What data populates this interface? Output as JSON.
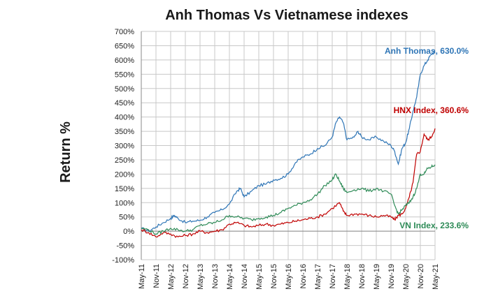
{
  "chart_data": {
    "type": "line",
    "title": "Anh Thomas Vs Vietnamese indexes",
    "ylabel": "Return %",
    "xlabel": "",
    "ylim": [
      -100,
      700
    ],
    "y_ticks": [
      -100,
      -50,
      0,
      50,
      100,
      150,
      200,
      250,
      300,
      350,
      400,
      450,
      500,
      550,
      600,
      650,
      700
    ],
    "y_tick_labels": [
      "-100%",
      "-50%",
      "0%",
      "50%",
      "100%",
      "150%",
      "200%",
      "250%",
      "300%",
      "350%",
      "400%",
      "450%",
      "500%",
      "550%",
      "600%",
      "650%",
      "700%"
    ],
    "x_tick_labels": [
      "May-11",
      "Nov-11",
      "May-12",
      "Nov-12",
      "May-13",
      "Nov-13",
      "May-14",
      "Nov-14",
      "May-15",
      "Nov-15",
      "May-16",
      "Nov-16",
      "May-17",
      "Nov-17",
      "May-18",
      "Nov-18",
      "May-19",
      "Nov-19",
      "May-20",
      "Nov-20",
      "May-21"
    ],
    "grid": true,
    "legend": "none",
    "series": [
      {
        "name": "Anh Thomas",
        "color": "#2e75b6",
        "end_label": "Anh Thomas, 630.0%",
        "values": [
          [
            0,
            10
          ],
          [
            2,
            0
          ],
          [
            4,
            15
          ],
          [
            6,
            30
          ],
          [
            8,
            45
          ],
          [
            9,
            55
          ],
          [
            10,
            45
          ],
          [
            12,
            30
          ],
          [
            14,
            35
          ],
          [
            16,
            38
          ],
          [
            18,
            50
          ],
          [
            20,
            65
          ],
          [
            22,
            75
          ],
          [
            24,
            95
          ],
          [
            26,
            140
          ],
          [
            27,
            150
          ],
          [
            28,
            120
          ],
          [
            30,
            140
          ],
          [
            32,
            160
          ],
          [
            34,
            165
          ],
          [
            36,
            180
          ],
          [
            38,
            185
          ],
          [
            40,
            200
          ],
          [
            42,
            240
          ],
          [
            44,
            260
          ],
          [
            46,
            270
          ],
          [
            48,
            290
          ],
          [
            50,
            300
          ],
          [
            52,
            330
          ],
          [
            53,
            380
          ],
          [
            54,
            400
          ],
          [
            55,
            380
          ],
          [
            56,
            320
          ],
          [
            58,
            330
          ],
          [
            59,
            350
          ],
          [
            60,
            330
          ],
          [
            62,
            320
          ],
          [
            64,
            330
          ],
          [
            66,
            315
          ],
          [
            68,
            300
          ],
          [
            69,
            280
          ],
          [
            70,
            235
          ],
          [
            71,
            290
          ],
          [
            72,
            310
          ],
          [
            73,
            360
          ],
          [
            74,
            420
          ],
          [
            75,
            470
          ],
          [
            76,
            550
          ],
          [
            77,
            580
          ],
          [
            78,
            600
          ],
          [
            79,
            620
          ],
          [
            80,
            630
          ]
        ]
      },
      {
        "name": "HNX Index",
        "color": "#c00000",
        "end_label": "HNX Index, 360.6%",
        "values": [
          [
            0,
            5
          ],
          [
            2,
            -5
          ],
          [
            4,
            -20
          ],
          [
            6,
            -5
          ],
          [
            8,
            -10
          ],
          [
            10,
            -20
          ],
          [
            12,
            -15
          ],
          [
            14,
            -10
          ],
          [
            16,
            0
          ],
          [
            18,
            -5
          ],
          [
            20,
            0
          ],
          [
            22,
            5
          ],
          [
            24,
            25
          ],
          [
            26,
            30
          ],
          [
            28,
            20
          ],
          [
            30,
            15
          ],
          [
            32,
            20
          ],
          [
            34,
            25
          ],
          [
            36,
            20
          ],
          [
            38,
            25
          ],
          [
            40,
            30
          ],
          [
            42,
            35
          ],
          [
            44,
            40
          ],
          [
            46,
            45
          ],
          [
            48,
            50
          ],
          [
            50,
            60
          ],
          [
            52,
            80
          ],
          [
            54,
            100
          ],
          [
            55,
            70
          ],
          [
            56,
            55
          ],
          [
            58,
            60
          ],
          [
            60,
            60
          ],
          [
            62,
            55
          ],
          [
            64,
            50
          ],
          [
            66,
            55
          ],
          [
            68,
            50
          ],
          [
            69,
            40
          ],
          [
            70,
            55
          ],
          [
            71,
            60
          ],
          [
            72,
            80
          ],
          [
            73,
            120
          ],
          [
            74,
            170
          ],
          [
            75,
            270
          ],
          [
            76,
            280
          ],
          [
            77,
            340
          ],
          [
            78,
            320
          ],
          [
            79,
            330
          ],
          [
            80,
            360
          ]
        ]
      },
      {
        "name": "VN Index",
        "color": "#2e8b57",
        "end_label": "VN Index, 233.6%",
        "values": [
          [
            0,
            10
          ],
          [
            2,
            5
          ],
          [
            4,
            -10
          ],
          [
            6,
            0
          ],
          [
            8,
            10
          ],
          [
            10,
            5
          ],
          [
            12,
            0
          ],
          [
            14,
            5
          ],
          [
            16,
            20
          ],
          [
            18,
            25
          ],
          [
            20,
            30
          ],
          [
            22,
            40
          ],
          [
            24,
            55
          ],
          [
            26,
            50
          ],
          [
            28,
            45
          ],
          [
            30,
            40
          ],
          [
            32,
            45
          ],
          [
            34,
            50
          ],
          [
            36,
            55
          ],
          [
            38,
            65
          ],
          [
            40,
            80
          ],
          [
            42,
            90
          ],
          [
            44,
            100
          ],
          [
            46,
            110
          ],
          [
            48,
            130
          ],
          [
            50,
            160
          ],
          [
            52,
            180
          ],
          [
            53,
            200
          ],
          [
            54,
            175
          ],
          [
            55,
            150
          ],
          [
            56,
            135
          ],
          [
            58,
            145
          ],
          [
            60,
            150
          ],
          [
            62,
            140
          ],
          [
            64,
            150
          ],
          [
            66,
            140
          ],
          [
            68,
            130
          ],
          [
            69,
            90
          ],
          [
            70,
            60
          ],
          [
            71,
            75
          ],
          [
            72,
            90
          ],
          [
            73,
            100
          ],
          [
            74,
            120
          ],
          [
            75,
            150
          ],
          [
            76,
            200
          ],
          [
            77,
            200
          ],
          [
            78,
            220
          ],
          [
            79,
            225
          ],
          [
            80,
            233
          ]
        ]
      }
    ]
  }
}
